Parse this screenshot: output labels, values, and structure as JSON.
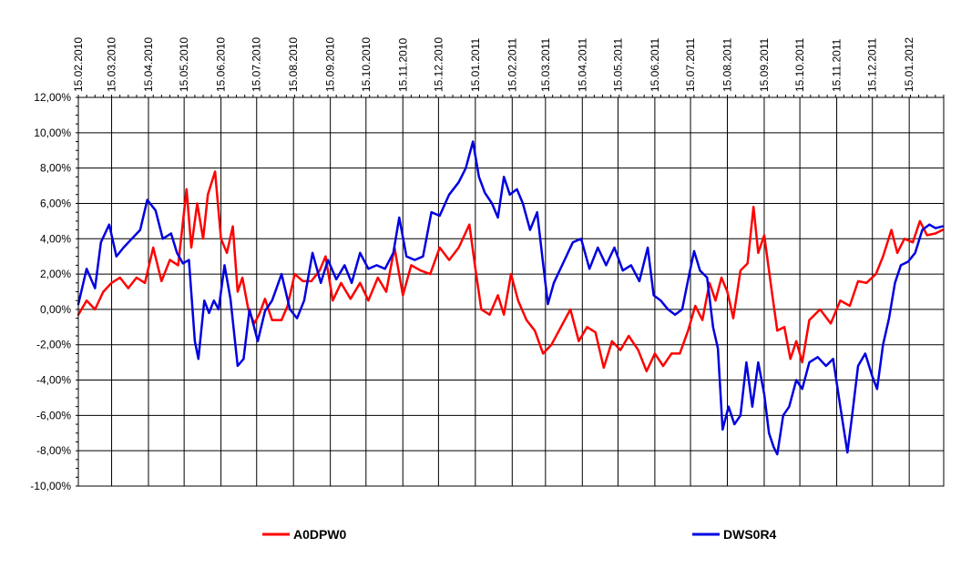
{
  "chart_data": {
    "type": "line",
    "title": "",
    "xlabel": "",
    "ylabel": "",
    "x_range": [
      "2010-02-15",
      "2012-02-13"
    ],
    "ylim": [
      -10,
      12
    ],
    "y_ticks": [
      -10,
      -8,
      -6,
      -4,
      -2,
      0,
      2,
      4,
      6,
      8,
      10,
      12
    ],
    "y_tick_labels": [
      "-10,00%",
      "-8,00%",
      "-6,00%",
      "-4,00%",
      "-2,00%",
      "0,00%",
      "2,00%",
      "4,00%",
      "6,00%",
      "8,00%",
      "10,00%",
      "12,00%"
    ],
    "x_ticks": [
      "2010-02-15",
      "2010-03-15",
      "2010-04-15",
      "2010-05-15",
      "2010-06-15",
      "2010-07-15",
      "2010-08-15",
      "2010-09-15",
      "2010-10-15",
      "2010-11-15",
      "2010-12-15",
      "2011-01-15",
      "2011-02-15",
      "2011-03-15",
      "2011-04-15",
      "2011-05-15",
      "2011-06-15",
      "2011-07-15",
      "2011-08-15",
      "2011-09-15",
      "2011-10-15",
      "2011-11-15",
      "2011-12-15",
      "2012-01-15"
    ],
    "x_tick_labels": [
      "15.02.2010",
      "15.03.2010",
      "15.04.2010",
      "15.05.2010",
      "15.06.2010",
      "15.07.2010",
      "15.08.2010",
      "15.09.2010",
      "15.10.2010",
      "15.11.2010",
      "15.12.2010",
      "15.01.2011",
      "15.02.2011",
      "15.03.2011",
      "15.04.2011",
      "15.05.2011",
      "15.06.2011",
      "15.07.2011",
      "15.08.2011",
      "15.09.2011",
      "15.10.2011",
      "15.11.2011",
      "15.12.2011",
      "15.01.2012"
    ],
    "grid": true,
    "legend_position": "bottom",
    "series": [
      {
        "name": "A0DPW0",
        "color": "#ff0000",
        "points": [
          [
            "2010-02-15",
            -0.3
          ],
          [
            "2010-02-22",
            0.5
          ],
          [
            "2010-03-01",
            0.0
          ],
          [
            "2010-03-08",
            1.0
          ],
          [
            "2010-03-15",
            1.5
          ],
          [
            "2010-03-22",
            1.8
          ],
          [
            "2010-03-29",
            1.2
          ],
          [
            "2010-04-05",
            1.8
          ],
          [
            "2010-04-12",
            1.5
          ],
          [
            "2010-04-19",
            3.5
          ],
          [
            "2010-04-26",
            1.6
          ],
          [
            "2010-05-03",
            2.8
          ],
          [
            "2010-05-10",
            2.5
          ],
          [
            "2010-05-17",
            6.8
          ],
          [
            "2010-05-21",
            3.5
          ],
          [
            "2010-05-26",
            6.0
          ],
          [
            "2010-05-31",
            4.0
          ],
          [
            "2010-06-04",
            6.5
          ],
          [
            "2010-06-10",
            7.8
          ],
          [
            "2010-06-15",
            4.0
          ],
          [
            "2010-06-20",
            3.2
          ],
          [
            "2010-06-25",
            4.7
          ],
          [
            "2010-06-29",
            1.0
          ],
          [
            "2010-07-03",
            1.8
          ],
          [
            "2010-07-08",
            0.0
          ],
          [
            "2010-07-13",
            -0.8
          ],
          [
            "2010-07-17",
            -0.3
          ],
          [
            "2010-07-22",
            0.6
          ],
          [
            "2010-07-28",
            -0.6
          ],
          [
            "2010-08-05",
            -0.6
          ],
          [
            "2010-08-10",
            0.2
          ],
          [
            "2010-08-16",
            2.0
          ],
          [
            "2010-08-23",
            1.6
          ],
          [
            "2010-08-30",
            1.6
          ],
          [
            "2010-09-06",
            2.2
          ],
          [
            "2010-09-11",
            3.0
          ],
          [
            "2010-09-17",
            0.5
          ],
          [
            "2010-09-24",
            1.5
          ],
          [
            "2010-10-02",
            0.6
          ],
          [
            "2010-10-10",
            1.5
          ],
          [
            "2010-10-17",
            0.5
          ],
          [
            "2010-10-25",
            1.8
          ],
          [
            "2010-11-01",
            1.0
          ],
          [
            "2010-11-08",
            3.5
          ],
          [
            "2010-11-15",
            0.8
          ],
          [
            "2010-11-22",
            2.5
          ],
          [
            "2010-11-30",
            2.2
          ],
          [
            "2010-12-08",
            2.0
          ],
          [
            "2010-12-16",
            3.5
          ],
          [
            "2010-12-24",
            2.8
          ],
          [
            "2011-01-01",
            3.5
          ],
          [
            "2011-01-10",
            4.8
          ],
          [
            "2011-01-15",
            2.3
          ],
          [
            "2011-01-20",
            0.0
          ],
          [
            "2011-01-27",
            -0.3
          ],
          [
            "2011-02-03",
            0.8
          ],
          [
            "2011-02-08",
            -0.3
          ],
          [
            "2011-02-14",
            2.0
          ],
          [
            "2011-02-20",
            0.5
          ],
          [
            "2011-02-27",
            -0.6
          ],
          [
            "2011-03-06",
            -1.2
          ],
          [
            "2011-03-13",
            -2.5
          ],
          [
            "2011-03-20",
            -2.0
          ],
          [
            "2011-03-28",
            -1.0
          ],
          [
            "2011-04-05",
            0.0
          ],
          [
            "2011-04-12",
            -1.8
          ],
          [
            "2011-04-19",
            -1.0
          ],
          [
            "2011-04-26",
            -1.3
          ],
          [
            "2011-05-03",
            -3.3
          ],
          [
            "2011-05-10",
            -1.8
          ],
          [
            "2011-05-17",
            -2.3
          ],
          [
            "2011-05-24",
            -1.5
          ],
          [
            "2011-06-01",
            -2.3
          ],
          [
            "2011-06-08",
            -3.5
          ],
          [
            "2011-06-15",
            -2.5
          ],
          [
            "2011-06-22",
            -3.2
          ],
          [
            "2011-06-29",
            -2.5
          ],
          [
            "2011-07-06",
            -2.5
          ],
          [
            "2011-07-13",
            -1.2
          ],
          [
            "2011-07-19",
            0.2
          ],
          [
            "2011-07-25",
            -0.6
          ],
          [
            "2011-07-31",
            1.5
          ],
          [
            "2011-08-05",
            0.5
          ],
          [
            "2011-08-10",
            1.8
          ],
          [
            "2011-08-15",
            1.0
          ],
          [
            "2011-08-20",
            -0.5
          ],
          [
            "2011-08-26",
            2.2
          ],
          [
            "2011-09-01",
            2.6
          ],
          [
            "2011-09-06",
            5.8
          ],
          [
            "2011-09-10",
            3.2
          ],
          [
            "2011-09-15",
            4.2
          ],
          [
            "2011-09-21",
            1.2
          ],
          [
            "2011-09-26",
            -1.2
          ],
          [
            "2011-10-02",
            -1.0
          ],
          [
            "2011-10-07",
            -2.8
          ],
          [
            "2011-10-12",
            -1.8
          ],
          [
            "2011-10-17",
            -3.0
          ],
          [
            "2011-10-23",
            -0.6
          ],
          [
            "2011-11-01",
            0.0
          ],
          [
            "2011-11-10",
            -0.8
          ],
          [
            "2011-11-18",
            0.5
          ],
          [
            "2011-11-26",
            0.2
          ],
          [
            "2011-12-03",
            1.6
          ],
          [
            "2011-12-10",
            1.5
          ],
          [
            "2011-12-18",
            2.0
          ],
          [
            "2011-12-24",
            3.0
          ],
          [
            "2011-12-31",
            4.5
          ],
          [
            "2012-01-05",
            3.2
          ],
          [
            "2012-01-11",
            4.0
          ],
          [
            "2012-01-18",
            3.8
          ],
          [
            "2012-01-24",
            5.0
          ],
          [
            "2012-01-30",
            4.2
          ],
          [
            "2012-02-06",
            4.3
          ],
          [
            "2012-02-12",
            4.5
          ]
        ]
      },
      {
        "name": "DWS0R4",
        "color": "#0000e0",
        "points": [
          [
            "2010-02-15",
            0.3
          ],
          [
            "2010-02-22",
            2.3
          ],
          [
            "2010-03-01",
            1.2
          ],
          [
            "2010-03-06",
            3.8
          ],
          [
            "2010-03-13",
            4.8
          ],
          [
            "2010-03-19",
            3.0
          ],
          [
            "2010-03-25",
            3.5
          ],
          [
            "2010-04-01",
            4.0
          ],
          [
            "2010-04-08",
            4.5
          ],
          [
            "2010-04-14",
            6.2
          ],
          [
            "2010-04-21",
            5.6
          ],
          [
            "2010-04-27",
            4.0
          ],
          [
            "2010-05-04",
            4.3
          ],
          [
            "2010-05-09",
            3.2
          ],
          [
            "2010-05-14",
            2.6
          ],
          [
            "2010-05-19",
            2.8
          ],
          [
            "2010-05-24",
            -1.8
          ],
          [
            "2010-05-27",
            -2.8
          ],
          [
            "2010-06-01",
            0.5
          ],
          [
            "2010-06-05",
            -0.2
          ],
          [
            "2010-06-09",
            0.5
          ],
          [
            "2010-06-13",
            0.0
          ],
          [
            "2010-06-18",
            2.5
          ],
          [
            "2010-06-23",
            0.6
          ],
          [
            "2010-06-29",
            -3.2
          ],
          [
            "2010-07-04",
            -2.8
          ],
          [
            "2010-07-09",
            0.0
          ],
          [
            "2010-07-16",
            -1.8
          ],
          [
            "2010-07-22",
            -0.1
          ],
          [
            "2010-07-28",
            0.5
          ],
          [
            "2010-08-05",
            2.0
          ],
          [
            "2010-08-12",
            0.0
          ],
          [
            "2010-08-18",
            -0.5
          ],
          [
            "2010-08-24",
            0.5
          ],
          [
            "2010-08-31",
            3.2
          ],
          [
            "2010-09-07",
            1.5
          ],
          [
            "2010-09-13",
            2.8
          ],
          [
            "2010-09-20",
            1.7
          ],
          [
            "2010-09-27",
            2.5
          ],
          [
            "2010-10-03",
            1.5
          ],
          [
            "2010-10-10",
            3.2
          ],
          [
            "2010-10-17",
            2.3
          ],
          [
            "2010-10-24",
            2.5
          ],
          [
            "2010-10-31",
            2.3
          ],
          [
            "2010-11-07",
            3.2
          ],
          [
            "2010-11-12",
            5.2
          ],
          [
            "2010-11-18",
            3.0
          ],
          [
            "2010-11-25",
            2.8
          ],
          [
            "2010-12-02",
            3.0
          ],
          [
            "2010-12-09",
            5.5
          ],
          [
            "2010-12-16",
            5.3
          ],
          [
            "2010-12-24",
            6.5
          ],
          [
            "2011-01-01",
            7.2
          ],
          [
            "2011-01-07",
            8.0
          ],
          [
            "2011-01-13",
            9.5
          ],
          [
            "2011-01-18",
            7.5
          ],
          [
            "2011-01-23",
            6.6
          ],
          [
            "2011-01-29",
            6.0
          ],
          [
            "2011-02-03",
            5.2
          ],
          [
            "2011-02-08",
            7.5
          ],
          [
            "2011-02-13",
            6.5
          ],
          [
            "2011-02-19",
            6.8
          ],
          [
            "2011-02-24",
            6.0
          ],
          [
            "2011-03-02",
            4.5
          ],
          [
            "2011-03-08",
            5.5
          ],
          [
            "2011-03-13",
            2.6
          ],
          [
            "2011-03-17",
            0.3
          ],
          [
            "2011-03-22",
            1.5
          ],
          [
            "2011-03-29",
            2.5
          ],
          [
            "2011-04-07",
            3.8
          ],
          [
            "2011-04-14",
            4.0
          ],
          [
            "2011-04-21",
            2.3
          ],
          [
            "2011-04-28",
            3.5
          ],
          [
            "2011-05-05",
            2.5
          ],
          [
            "2011-05-12",
            3.5
          ],
          [
            "2011-05-19",
            2.2
          ],
          [
            "2011-05-26",
            2.5
          ],
          [
            "2011-06-02",
            1.6
          ],
          [
            "2011-06-09",
            3.5
          ],
          [
            "2011-06-14",
            0.8
          ],
          [
            "2011-06-20",
            0.5
          ],
          [
            "2011-06-26",
            0.0
          ],
          [
            "2011-07-02",
            -0.3
          ],
          [
            "2011-07-08",
            0.0
          ],
          [
            "2011-07-14",
            2.0
          ],
          [
            "2011-07-18",
            3.3
          ],
          [
            "2011-07-23",
            2.2
          ],
          [
            "2011-07-29",
            1.8
          ],
          [
            "2011-08-03",
            -1.0
          ],
          [
            "2011-08-07",
            -2.2
          ],
          [
            "2011-08-11",
            -6.8
          ],
          [
            "2011-08-16",
            -5.5
          ],
          [
            "2011-08-21",
            -6.5
          ],
          [
            "2011-08-26",
            -6.0
          ],
          [
            "2011-08-31",
            -3.0
          ],
          [
            "2011-09-05",
            -5.5
          ],
          [
            "2011-09-10",
            -3.0
          ],
          [
            "2011-09-15",
            -4.8
          ],
          [
            "2011-09-19",
            -7.0
          ],
          [
            "2011-09-23",
            -7.8
          ],
          [
            "2011-09-26",
            -8.2
          ],
          [
            "2011-10-01",
            -6.0
          ],
          [
            "2011-10-06",
            -5.5
          ],
          [
            "2011-10-12",
            -4.0
          ],
          [
            "2011-10-17",
            -4.5
          ],
          [
            "2011-10-23",
            -3.0
          ],
          [
            "2011-10-30",
            -2.7
          ],
          [
            "2011-11-06",
            -3.2
          ],
          [
            "2011-11-12",
            -2.8
          ],
          [
            "2011-11-18",
            -5.5
          ],
          [
            "2011-11-24",
            -8.1
          ],
          [
            "2011-11-28",
            -6.0
          ],
          [
            "2011-12-03",
            -3.2
          ],
          [
            "2011-12-09",
            -2.5
          ],
          [
            "2011-12-15",
            -3.8
          ],
          [
            "2011-12-19",
            -4.5
          ],
          [
            "2011-12-24",
            -2.0
          ],
          [
            "2011-12-29",
            -0.5
          ],
          [
            "2012-01-03",
            1.5
          ],
          [
            "2012-01-08",
            2.5
          ],
          [
            "2012-01-14",
            2.7
          ],
          [
            "2012-01-20",
            3.2
          ],
          [
            "2012-01-26",
            4.5
          ],
          [
            "2012-02-01",
            4.8
          ],
          [
            "2012-02-06",
            4.6
          ],
          [
            "2012-02-12",
            4.7
          ]
        ]
      }
    ]
  }
}
